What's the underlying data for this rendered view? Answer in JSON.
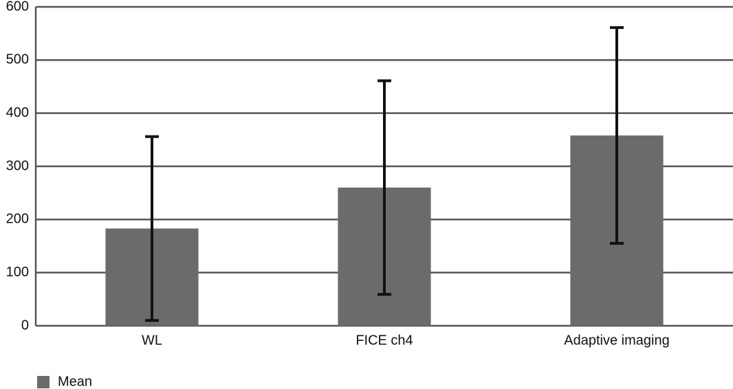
{
  "chart_data": {
    "type": "bar",
    "categories": [
      "WL",
      "FICE ch4",
      "Adaptive imaging"
    ],
    "series": [
      {
        "name": "Mean",
        "color": "#6b6b6b",
        "values": [
          183,
          260,
          358
        ],
        "errors": [
          173,
          201,
          203
        ]
      }
    ],
    "ylim": [
      0,
      600
    ],
    "yticks": [
      0,
      100,
      200,
      300,
      400,
      500,
      600
    ],
    "grid": true,
    "legend": "bottom-left"
  }
}
